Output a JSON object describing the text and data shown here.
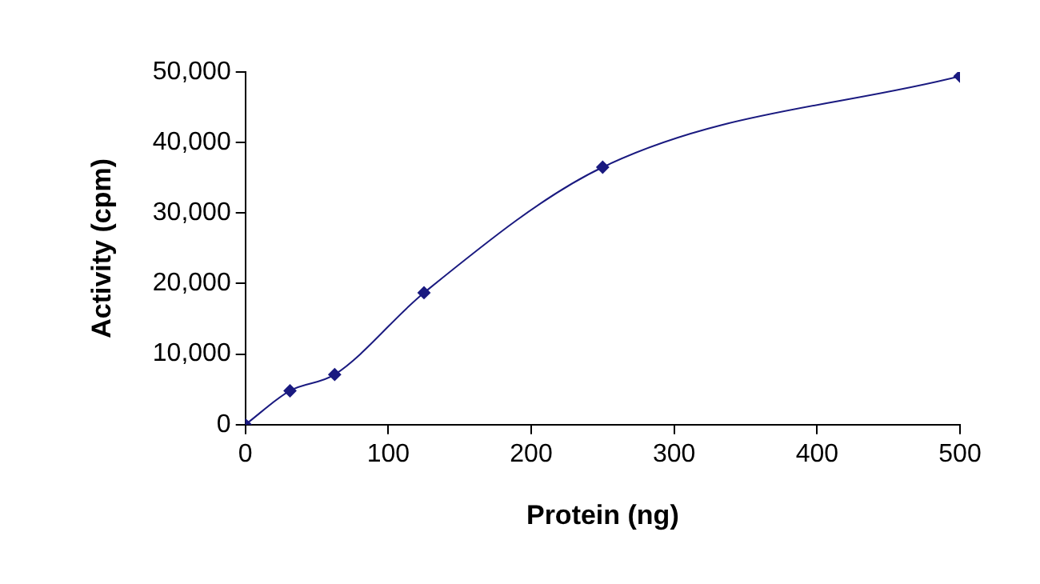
{
  "chart_data": {
    "type": "line",
    "xlabel": "Protein (ng)",
    "ylabel": "Activity (cpm)",
    "x": [
      0,
      31.25,
      62.5,
      125,
      250,
      500
    ],
    "series": [
      {
        "color": "#1a1a80",
        "values": [
          0,
          4800,
          7100,
          18700,
          36500,
          49400
        ]
      }
    ],
    "xlim": [
      0,
      500
    ],
    "xticks": [
      0,
      100,
      200,
      300,
      400,
      500
    ],
    "ylim": [
      0,
      50000
    ],
    "yticks": [
      {
        "value": 0,
        "label": "0"
      },
      {
        "value": 10000,
        "label": "10,000"
      },
      {
        "value": 20000,
        "label": "20,000"
      },
      {
        "value": 30000,
        "label": "30,000"
      },
      {
        "value": 40000,
        "label": "40,000"
      },
      {
        "value": 50000,
        "label": "50,000"
      }
    ],
    "grid": false,
    "legend": false,
    "marker": "diamond",
    "line_style": "solid"
  }
}
